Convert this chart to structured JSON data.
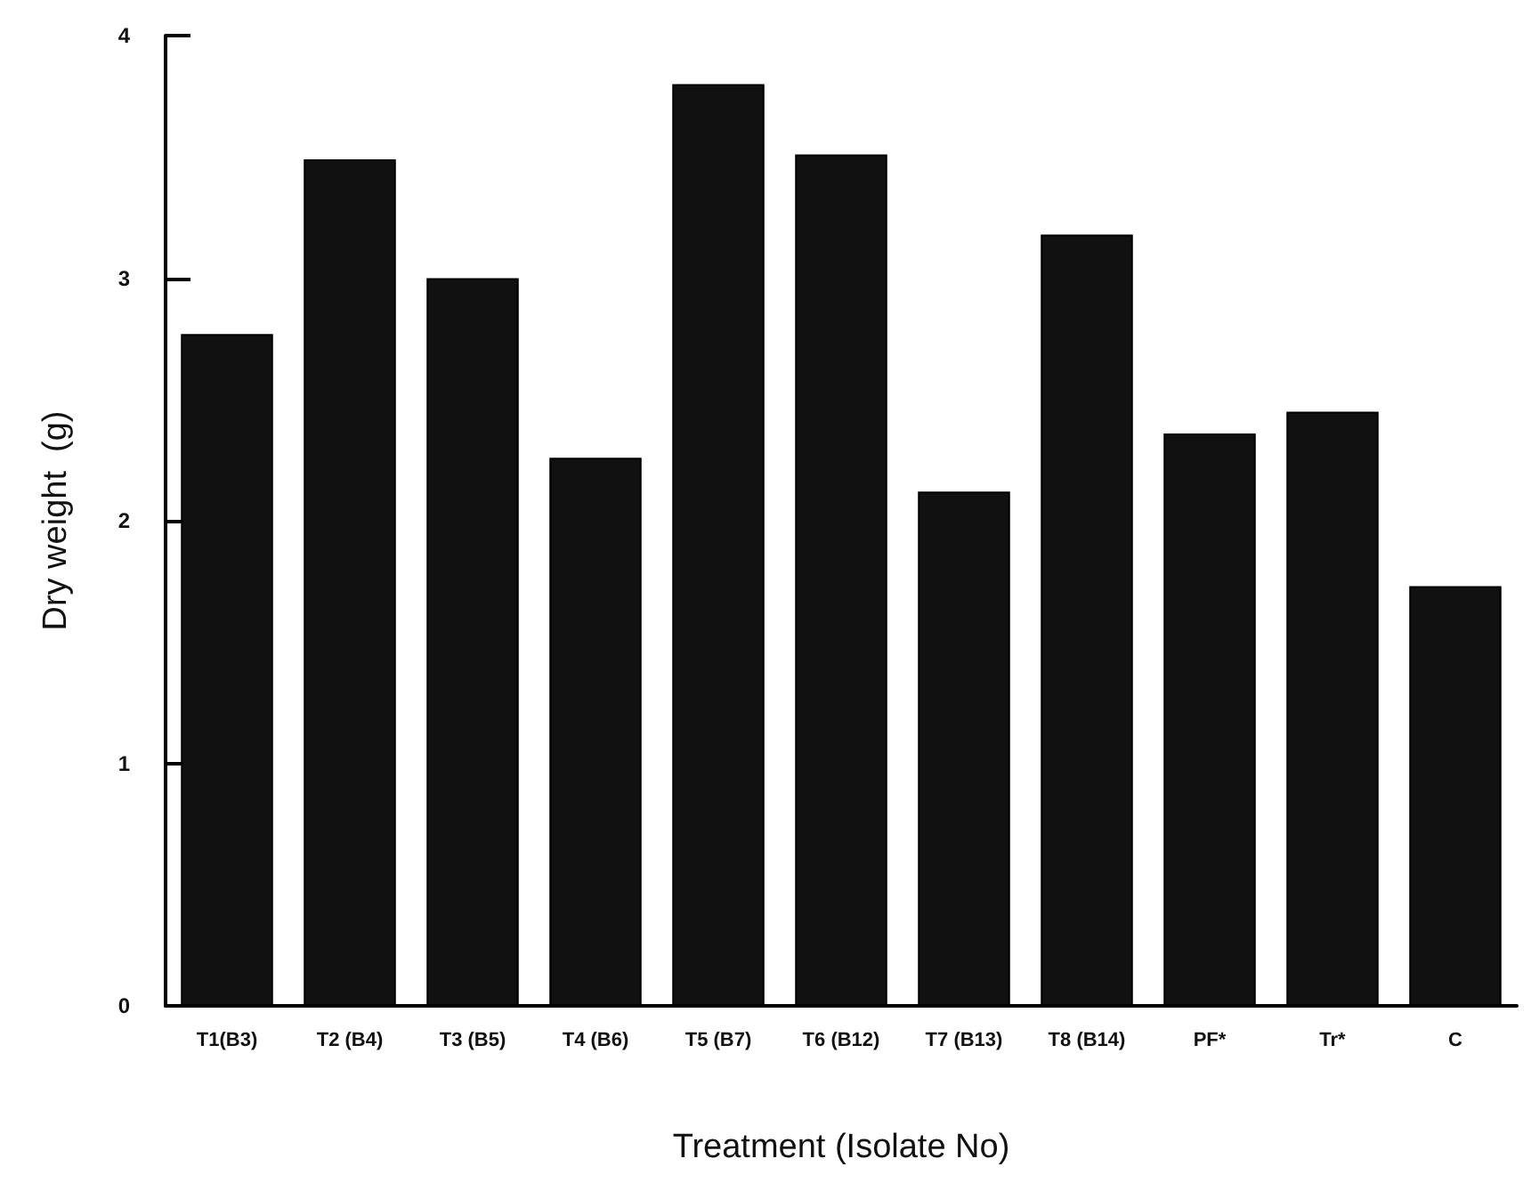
{
  "chart_data": {
    "type": "bar",
    "xlabel": "Treatment (Isolate No)",
    "ylabel": "Dry weight  (g)",
    "categories": [
      "T1(B3)",
      "T2 (B4)",
      "T3 (B5)",
      "T4 (B6)",
      "T5 (B7)",
      "T6 (B12)",
      "T7 (B13)",
      "T8 (B14)",
      "PF*",
      "Tr*",
      "C"
    ],
    "values": [
      2.77,
      3.49,
      3.0,
      2.26,
      3.8,
      3.51,
      2.12,
      3.18,
      2.36,
      2.45,
      1.73
    ],
    "color": "#111111",
    "ylim": [
      0,
      4
    ],
    "yticks": [
      0,
      1,
      2,
      3,
      4
    ],
    "grid": false
  }
}
